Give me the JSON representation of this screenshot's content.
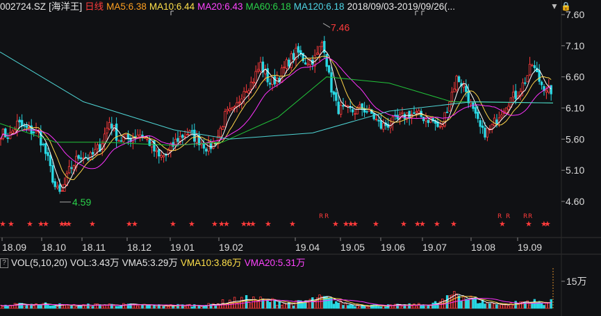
{
  "header": {
    "code": "002724.SZ",
    "name": "[海洋王]",
    "period": "日线",
    "ma5": "MA5:6.38",
    "ma10": "MA10:6.44",
    "ma20": "MA20:6.43",
    "ma60": "MA60:6.18",
    "ma120": "MA120:6.18",
    "range": "2018/09/03-2019/09/26(..."
  },
  "colors": {
    "up": "#ff3b3b",
    "down": "#28d7e3",
    "ma5": "#ffffff",
    "ma10": "#ffd54a",
    "ma20": "#ff33ff",
    "ma60": "#22c43a",
    "ma120": "#4fd6d6"
  },
  "icons": [
    "dropdown-arrow-icon",
    "lock-icon"
  ],
  "volume": {
    "title": "VOL(5,10,20)",
    "vol": "VOL:3.43万",
    "vma5": "VMA5:3.29万",
    "vma10": "VMA10:3.86万",
    "vma20": "VMA20:5.31万",
    "axis_label": "15万"
  },
  "chart_data": {
    "type": "candlestick",
    "y_ticks": [
      "7.60",
      "7.10",
      "6.60",
      "6.10",
      "5.60",
      "5.10",
      "4.60"
    ],
    "y_values": [
      7.6,
      7.1,
      6.6,
      6.1,
      5.6,
      5.1,
      4.6
    ],
    "x_ticks": [
      "18.09",
      "18.10",
      "18.11",
      "18.12",
      "19.01",
      "19.02",
      "19.04",
      "19.05",
      "19.06",
      "19.07",
      "19.08",
      "19.09"
    ],
    "annotations": {
      "high": "7.46",
      "low": "4.59"
    },
    "price_path": [
      [
        0,
        5.7
      ],
      [
        14,
        5.65
      ],
      [
        25,
        5.85
      ],
      [
        40,
        5.75
      ],
      [
        55,
        5.7
      ],
      [
        68,
        5.3
      ],
      [
        80,
        4.8
      ],
      [
        88,
        4.7
      ],
      [
        100,
        5.1
      ],
      [
        115,
        5.35
      ],
      [
        130,
        5.3
      ],
      [
        145,
        5.5
      ],
      [
        158,
        5.9
      ],
      [
        170,
        5.6
      ],
      [
        185,
        5.6
      ],
      [
        200,
        5.7
      ],
      [
        215,
        5.55
      ],
      [
        228,
        5.3
      ],
      [
        240,
        5.35
      ],
      [
        255,
        5.6
      ],
      [
        270,
        5.7
      ],
      [
        285,
        5.6
      ],
      [
        300,
        5.45
      ],
      [
        312,
        5.6
      ],
      [
        325,
        6.0
      ],
      [
        338,
        6.05
      ],
      [
        350,
        6.4
      ],
      [
        362,
        6.5
      ],
      [
        375,
        6.8
      ],
      [
        388,
        6.5
      ],
      [
        402,
        6.6
      ],
      [
        415,
        6.85
      ],
      [
        428,
        7.0
      ],
      [
        440,
        6.85
      ],
      [
        455,
        6.9
      ],
      [
        465,
        7.2
      ],
      [
        475,
        6.5
      ],
      [
        485,
        6.1
      ],
      [
        497,
        6.05
      ],
      [
        510,
        6.05
      ],
      [
        522,
        6.1
      ],
      [
        535,
        6.0
      ],
      [
        548,
        5.8
      ],
      [
        560,
        5.85
      ],
      [
        572,
        5.9
      ],
      [
        585,
        6.0
      ],
      [
        598,
        6.0
      ],
      [
        610,
        5.95
      ],
      [
        622,
        5.9
      ],
      [
        634,
        5.75
      ],
      [
        646,
        6.2
      ],
      [
        658,
        6.6
      ],
      [
        670,
        6.4
      ],
      [
        682,
        6.0
      ],
      [
        694,
        5.7
      ],
      [
        706,
        5.75
      ],
      [
        718,
        6.0
      ],
      [
        730,
        6.2
      ],
      [
        742,
        6.3
      ],
      [
        754,
        6.5
      ],
      [
        766,
        6.8
      ],
      [
        778,
        6.5
      ],
      [
        790,
        6.4
      ],
      [
        796,
        6.1
      ]
    ],
    "ma120_path": [
      [
        0,
        7.0
      ],
      [
        120,
        6.2
      ],
      [
        250,
        5.75
      ],
      [
        330,
        5.6
      ],
      [
        450,
        5.7
      ],
      [
        560,
        6.05
      ],
      [
        680,
        6.2
      ],
      [
        796,
        6.18
      ]
    ],
    "ma60_path": [
      [
        0,
        5.85
      ],
      [
        80,
        5.55
      ],
      [
        150,
        5.55
      ],
      [
        250,
        5.5
      ],
      [
        320,
        5.55
      ],
      [
        400,
        5.95
      ],
      [
        470,
        6.6
      ],
      [
        560,
        6.5
      ],
      [
        650,
        6.2
      ],
      [
        796,
        6.18
      ]
    ],
    "volume_ylim": [
      0,
      20
    ],
    "volume_path": [
      [
        0,
        1.5
      ],
      [
        60,
        2.5
      ],
      [
        100,
        1.5
      ],
      [
        160,
        2.0
      ],
      [
        230,
        1.5
      ],
      [
        300,
        1.8
      ],
      [
        330,
        4.0
      ],
      [
        360,
        5.0
      ],
      [
        390,
        4.0
      ],
      [
        420,
        2.5
      ],
      [
        465,
        5.5
      ],
      [
        500,
        2.0
      ],
      [
        560,
        1.5
      ],
      [
        620,
        2.0
      ],
      [
        645,
        5.0
      ],
      [
        655,
        10.0
      ],
      [
        670,
        6.0
      ],
      [
        700,
        3.0
      ],
      [
        730,
        2.0
      ],
      [
        760,
        4.0
      ],
      [
        780,
        3.0
      ],
      [
        796,
        3.4
      ]
    ]
  }
}
